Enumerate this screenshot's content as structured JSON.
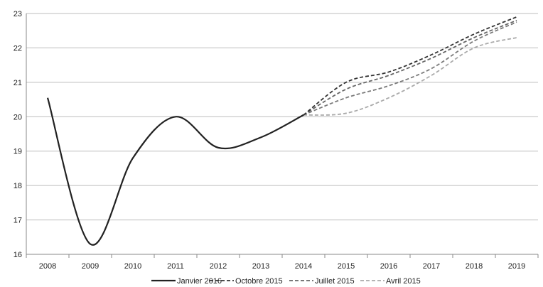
{
  "chart_data": {
    "type": "line",
    "title": "",
    "xlabel": "",
    "ylabel": "",
    "x": [
      2008,
      2009,
      2010,
      2011,
      2012,
      2013,
      2014,
      2015,
      2016,
      2017,
      2018,
      2019
    ],
    "x_tick_labels": [
      "2008",
      "2009",
      "2010",
      "2011",
      "2012",
      "2013",
      "2014",
      "2015",
      "2016",
      "2017",
      "2018",
      "2019"
    ],
    "ylim": [
      16,
      23
    ],
    "y_ticks": [
      16,
      17,
      18,
      19,
      20,
      21,
      22,
      23
    ],
    "y_tick_labels": [
      "16",
      "17",
      "18",
      "19",
      "20",
      "21",
      "22",
      "23"
    ],
    "grid": "horizontal",
    "legend_position": "bottom",
    "series": [
      {
        "name": "Janvier 2016",
        "style": "solid",
        "color": "#222222",
        "values": [
          20.55,
          16.3,
          18.8,
          20.0,
          19.1,
          19.4,
          20.05,
          null,
          null,
          null,
          null,
          null
        ]
      },
      {
        "name": "Octobre 2015",
        "style": "dashed",
        "color": "#333333",
        "values": [
          null,
          null,
          null,
          null,
          null,
          null,
          20.05,
          21.0,
          21.3,
          21.8,
          22.4,
          22.9
        ]
      },
      {
        "name": "Juillet 2015",
        "style": "dashed",
        "color": "#666666",
        "values": [
          null,
          null,
          null,
          null,
          null,
          null,
          20.05,
          20.8,
          21.2,
          21.7,
          22.3,
          22.8
        ]
      },
      {
        "name": "",
        "style": "dashed",
        "color": "#7a7a7a",
        "values": [
          null,
          null,
          null,
          null,
          null,
          null,
          20.05,
          20.55,
          20.9,
          21.4,
          22.2,
          22.75
        ]
      },
      {
        "name": "Avril 2015",
        "style": "dashed",
        "color": "#aaaaaa",
        "values": [
          null,
          null,
          null,
          null,
          null,
          null,
          20.05,
          20.1,
          20.55,
          21.2,
          22.0,
          22.3
        ]
      }
    ]
  }
}
